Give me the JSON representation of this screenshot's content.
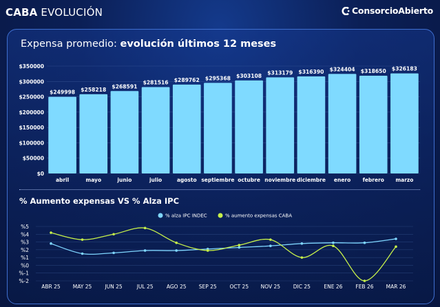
{
  "header": {
    "brand_bold": "CABA",
    "brand_rest": " EVOLUCIÓN",
    "logo_text": "ConsorcioAbierto"
  },
  "colors": {
    "bar": "#7fdaff",
    "ipc": "#7fd6ff",
    "caba": "#c6f04a",
    "grid": "#4a6aa8"
  },
  "chart_data": [
    {
      "type": "bar",
      "title_prefix": "Expensa promedio: ",
      "title_bold": "evolución últimos 12 meses",
      "categories": [
        "abril",
        "mayo",
        "junio",
        "julio",
        "agosto",
        "septiembre",
        "octubre",
        "noviembre",
        "diciembre",
        "enero",
        "febrero",
        "marzo"
      ],
      "values": [
        249998,
        258218,
        268591,
        281516,
        289762,
        295368,
        303108,
        313179,
        316390,
        324404,
        318650,
        326183
      ],
      "labels": [
        "$249998",
        "$258218",
        "$268591",
        "$281516",
        "$289762",
        "$295368",
        "$303108",
        "$313179",
        "$316390",
        "$324404",
        "$318650",
        "$326183"
      ],
      "ylim": [
        0,
        350000
      ],
      "yticks": [
        0,
        50000,
        100000,
        150000,
        200000,
        250000,
        300000,
        350000
      ],
      "ytick_labels": [
        "$0",
        "$50000",
        "$100000",
        "$150000",
        "$200000",
        "$250000",
        "$300000",
        "$350000"
      ]
    },
    {
      "type": "line",
      "title": "% Aumento expensas VS % Alza IPC",
      "categories": [
        "ABR 25",
        "MAY 25",
        "JUN 25",
        "JUL 25",
        "AGO 25",
        "SEP 25",
        "OCT 25",
        "NOV 25",
        "DIC 25",
        "ENE 26",
        "FEB 26",
        "MAR 26"
      ],
      "series": [
        {
          "name": "% alza IPC INDEC",
          "values": [
            2.8,
            1.5,
            1.6,
            1.9,
            1.9,
            2.1,
            2.3,
            2.5,
            2.8,
            2.9,
            2.9,
            3.4
          ]
        },
        {
          "name": "% aumento expensas CABA",
          "values": [
            4.2,
            3.3,
            4.0,
            4.8,
            2.9,
            1.9,
            2.6,
            3.3,
            1.0,
            2.5,
            -2.0,
            2.4
          ]
        }
      ],
      "ylim": [
        -2,
        5
      ],
      "yticks": [
        -2,
        -1,
        0,
        1,
        2,
        3,
        4,
        5
      ],
      "ytick_labels": [
        "%-2",
        "%-1",
        "%0",
        "%1",
        "%2",
        "%3",
        "%4",
        "%5"
      ],
      "legend_placement": "top-center"
    }
  ]
}
